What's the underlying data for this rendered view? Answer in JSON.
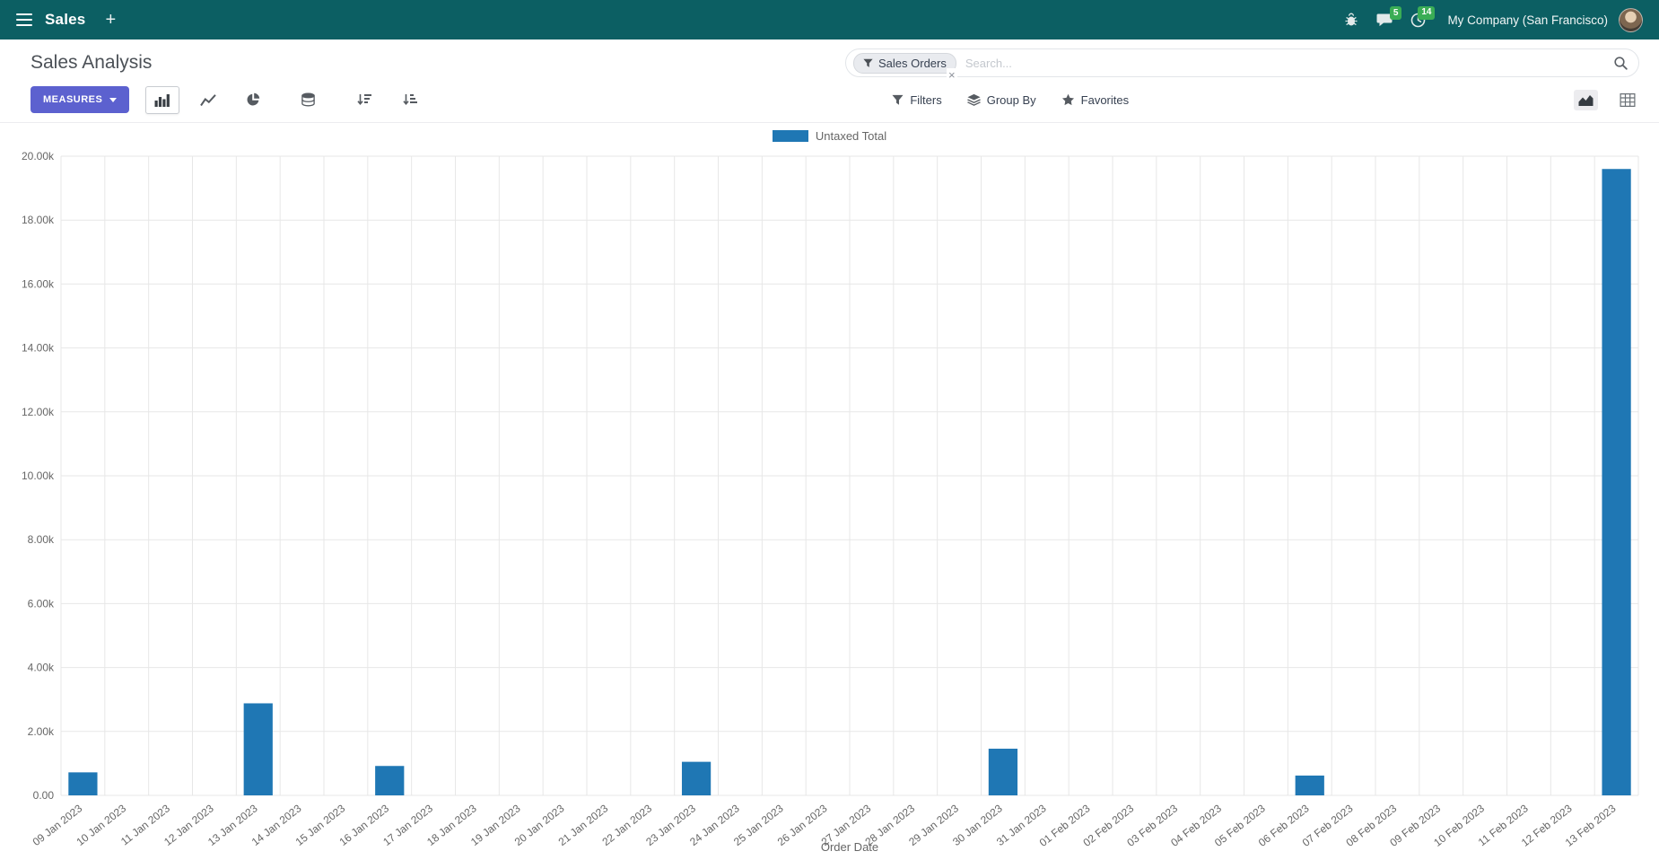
{
  "colors": {
    "navbar_bg": "#0c5f63",
    "badge_green": "#3aad55",
    "primary_button": "#5c61cf",
    "bar_blue": "#1f77b4"
  },
  "navbar": {
    "app_name": "Sales",
    "new_label": "+",
    "messages_badge": "5",
    "activities_badge": "14",
    "company_name": "My Company (San Francisco)"
  },
  "control_panel": {
    "title": "Sales Analysis",
    "measures_button": "MEASURES",
    "filters_label": "Filters",
    "group_by_label": "Group By",
    "favorites_label": "Favorites",
    "search": {
      "facet": "Sales Orders",
      "facet_remove": "×",
      "placeholder": "Search..."
    }
  },
  "chart_data": {
    "type": "bar",
    "title": "",
    "xlabel": "Order Date",
    "ylabel": "",
    "ylim": [
      0,
      20000
    ],
    "y_tick_step": 2000,
    "y_tick_labels": [
      "0.00",
      "2.00k",
      "4.00k",
      "6.00k",
      "8.00k",
      "10.00k",
      "12.00k",
      "14.00k",
      "16.00k",
      "18.00k",
      "20.00k"
    ],
    "grid": true,
    "legend_position": "top",
    "legend": [
      {
        "label": "Untaxed Total",
        "color": "#1f77b4"
      }
    ],
    "categories": [
      "09 Jan 2023",
      "10 Jan 2023",
      "11 Jan 2023",
      "12 Jan 2023",
      "13 Jan 2023",
      "14 Jan 2023",
      "15 Jan 2023",
      "16 Jan 2023",
      "17 Jan 2023",
      "18 Jan 2023",
      "19 Jan 2023",
      "20 Jan 2023",
      "21 Jan 2023",
      "22 Jan 2023",
      "23 Jan 2023",
      "24 Jan 2023",
      "25 Jan 2023",
      "26 Jan 2023",
      "27 Jan 2023",
      "28 Jan 2023",
      "29 Jan 2023",
      "30 Jan 2023",
      "31 Jan 2023",
      "01 Feb 2023",
      "02 Feb 2023",
      "03 Feb 2023",
      "04 Feb 2023",
      "05 Feb 2023",
      "06 Feb 2023",
      "07 Feb 2023",
      "08 Feb 2023",
      "09 Feb 2023",
      "10 Feb 2023",
      "11 Feb 2023",
      "12 Feb 2023",
      "13 Feb 2023"
    ],
    "series": [
      {
        "name": "Untaxed Total",
        "color": "#1f77b4",
        "values": [
          720,
          0,
          0,
          0,
          2880,
          0,
          0,
          920,
          0,
          0,
          0,
          0,
          0,
          0,
          1050,
          0,
          0,
          0,
          0,
          0,
          0,
          1460,
          0,
          0,
          0,
          0,
          0,
          0,
          620,
          0,
          0,
          0,
          0,
          0,
          0,
          19600
        ]
      }
    ]
  }
}
